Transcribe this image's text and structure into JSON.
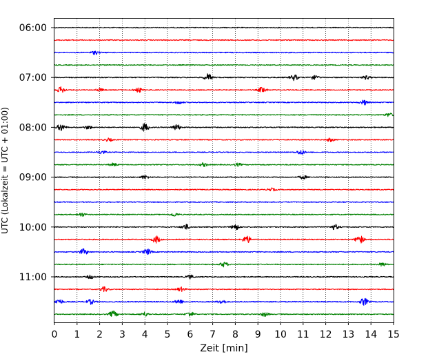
{
  "chart_data": {
    "type": "line",
    "title": "",
    "xlabel": "Zeit  [min]",
    "ylabel": "UTC (Lokalzeit = UTC + 01:00)",
    "xlim": [
      0,
      15
    ],
    "x_ticks": [
      "0",
      "1",
      "2",
      "3",
      "4",
      "5",
      "6",
      "7",
      "8",
      "9",
      "10",
      "11",
      "12",
      "13",
      "14",
      "15"
    ],
    "y_ticks": [
      "06:00",
      "07:00",
      "08:00",
      "09:00",
      "10:00",
      "11:00"
    ],
    "grid": "vertical dotted at each minute",
    "line_interval_min": 15,
    "colors_cycle": [
      "#000000",
      "#ff0000",
      "#0000ff",
      "#008000"
    ],
    "traces": [
      {
        "start": "06:00",
        "color": "#000000",
        "events": []
      },
      {
        "start": "06:15",
        "color": "#ff0000",
        "events": []
      },
      {
        "start": "06:30",
        "color": "#0000ff",
        "events": [
          [
            1.8,
            0.6
          ]
        ]
      },
      {
        "start": "06:45",
        "color": "#008000",
        "events": []
      },
      {
        "start": "07:00",
        "color": "#000000",
        "events": [
          [
            6.8,
            1.2
          ],
          [
            10.6,
            1.0
          ],
          [
            11.5,
            0.8
          ],
          [
            13.8,
            0.6
          ]
        ]
      },
      {
        "start": "07:15",
        "color": "#ff0000",
        "events": [
          [
            0.3,
            1.0
          ],
          [
            2.0,
            0.5
          ],
          [
            3.7,
            0.8
          ],
          [
            9.2,
            1.0
          ]
        ]
      },
      {
        "start": "07:30",
        "color": "#0000ff",
        "events": [
          [
            5.5,
            0.5
          ],
          [
            13.7,
            0.8
          ]
        ]
      },
      {
        "start": "07:45",
        "color": "#008000",
        "events": [
          [
            14.8,
            0.6
          ]
        ]
      },
      {
        "start": "08:00",
        "color": "#000000",
        "events": [
          [
            0.3,
            1.2
          ],
          [
            4.0,
            1.4
          ],
          [
            5.4,
            1.0
          ],
          [
            1.5,
            0.6
          ]
        ]
      },
      {
        "start": "08:15",
        "color": "#ff0000",
        "events": [
          [
            2.4,
            0.5
          ],
          [
            12.2,
            0.6
          ]
        ]
      },
      {
        "start": "08:30",
        "color": "#0000ff",
        "events": [
          [
            2.1,
            0.6
          ],
          [
            10.9,
            0.8
          ]
        ]
      },
      {
        "start": "08:45",
        "color": "#008000",
        "events": [
          [
            2.6,
            0.5
          ],
          [
            6.6,
            0.6
          ],
          [
            8.1,
            0.5
          ]
        ]
      },
      {
        "start": "09:00",
        "color": "#000000",
        "events": [
          [
            4.0,
            0.6
          ],
          [
            11.0,
            0.6
          ]
        ]
      },
      {
        "start": "09:15",
        "color": "#ff0000",
        "events": [
          [
            9.6,
            0.5
          ]
        ]
      },
      {
        "start": "09:30",
        "color": "#0000ff",
        "events": []
      },
      {
        "start": "09:45",
        "color": "#008000",
        "events": [
          [
            1.2,
            0.6
          ],
          [
            5.3,
            0.6
          ]
        ]
      },
      {
        "start": "10:00",
        "color": "#000000",
        "events": [
          [
            5.8,
            0.9
          ],
          [
            8.0,
            1.0
          ],
          [
            12.4,
            0.9
          ]
        ]
      },
      {
        "start": "10:15",
        "color": "#ff0000",
        "events": [
          [
            4.5,
            1.2
          ],
          [
            8.5,
            1.3
          ],
          [
            13.5,
            1.4
          ]
        ]
      },
      {
        "start": "10:30",
        "color": "#0000ff",
        "events": [
          [
            1.3,
            1.0
          ],
          [
            4.1,
            1.0
          ]
        ]
      },
      {
        "start": "10:45",
        "color": "#008000",
        "events": [
          [
            7.5,
            0.8
          ],
          [
            14.5,
            0.6
          ]
        ]
      },
      {
        "start": "11:00",
        "color": "#000000",
        "events": [
          [
            1.6,
            0.6
          ],
          [
            6.0,
            0.6
          ]
        ]
      },
      {
        "start": "11:15",
        "color": "#ff0000",
        "events": [
          [
            2.2,
            0.8
          ],
          [
            5.6,
            0.7
          ]
        ]
      },
      {
        "start": "11:30",
        "color": "#0000ff",
        "events": [
          [
            0.2,
            0.9
          ],
          [
            1.6,
            0.8
          ],
          [
            5.5,
            0.8
          ],
          [
            7.4,
            0.7
          ],
          [
            13.7,
            1.2
          ]
        ]
      },
      {
        "start": "11:45",
        "color": "#008000",
        "events": [
          [
            2.6,
            1.1
          ],
          [
            4.0,
            0.7
          ],
          [
            6.0,
            0.8
          ],
          [
            9.3,
            0.7
          ]
        ]
      }
    ]
  }
}
